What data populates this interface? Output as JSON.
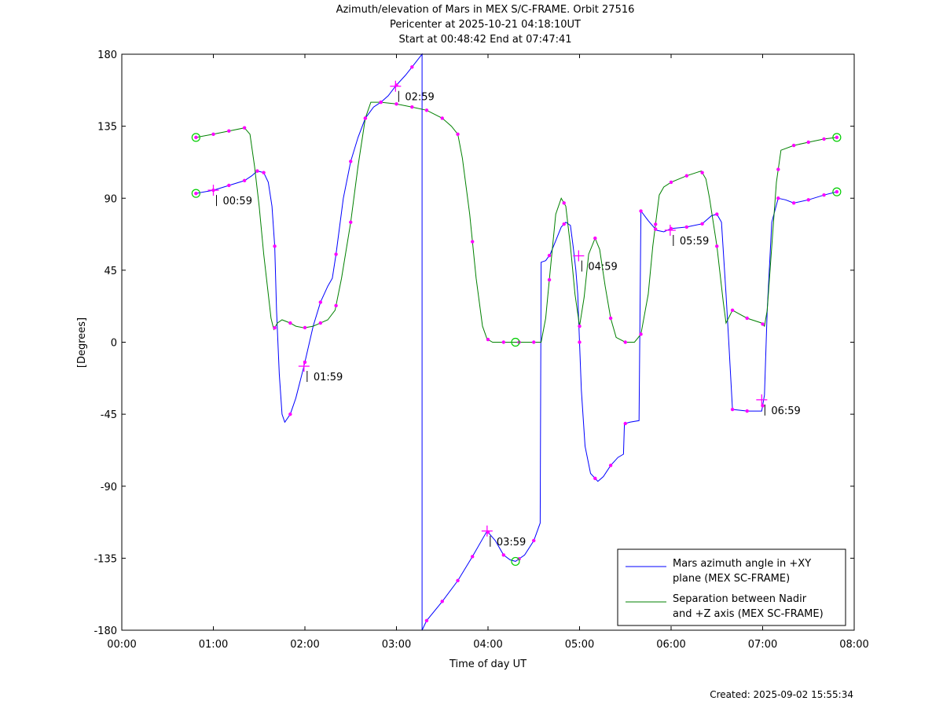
{
  "header": {
    "title": "Azimuth/elevation of Mars in MEX S/C-FRAME.  Orbit 27516",
    "subtitle1": "Pericenter at 2025-10-21 04:18:10UT",
    "subtitle2": "Start at 00:48:42 End at 07:47:41"
  },
  "footer": {
    "created": "Created: 2025-09-02 15:55:34"
  },
  "chart_data": {
    "type": "line",
    "title": "Azimuth/elevation of Mars in MEX S/C-FRAME.  Orbit 27516",
    "xlabel": "Time of day UT",
    "ylabel": "[Degrees]",
    "xlim": [
      0,
      8
    ],
    "ylim": [
      -180,
      180
    ],
    "x_unit": "hours UT",
    "x_ticks": [
      0,
      1,
      2,
      3,
      4,
      5,
      6,
      7,
      8
    ],
    "x_tick_labels": [
      "00:00",
      "01:00",
      "02:00",
      "03:00",
      "04:00",
      "05:00",
      "06:00",
      "07:00",
      "08:00"
    ],
    "y_ticks": [
      180,
      135,
      90,
      45,
      0,
      -45,
      -90,
      -135,
      -180
    ],
    "y_tick_labels": [
      "180",
      "135",
      "90",
      "45",
      "0",
      "-45",
      "-90",
      "-135",
      "-180"
    ],
    "grid": false,
    "legend_position": "bottom-right",
    "colors": {
      "azimuth": "#0000ff",
      "separation": "#008000",
      "markers": "#ff00ff",
      "endpoints": "#00cc00"
    },
    "series": [
      {
        "name": "Mars azimuth angle in +XY plane (MEX SC-FRAME)",
        "legend_lines": [
          "Mars azimuth angle in +XY",
          "plane (MEX SC-FRAME)"
        ],
        "color": "#0000ff",
        "points": [
          [
            0.81,
            93
          ],
          [
            1.0,
            95
          ],
          [
            1.17,
            98
          ],
          [
            1.34,
            101
          ],
          [
            1.42,
            104
          ],
          [
            1.48,
            107
          ],
          [
            1.55,
            106
          ],
          [
            1.6,
            100
          ],
          [
            1.64,
            85
          ],
          [
            1.67,
            60
          ],
          [
            1.69,
            20
          ],
          [
            1.72,
            -20
          ],
          [
            1.75,
            -45
          ],
          [
            1.78,
            -50
          ],
          [
            1.84,
            -45
          ],
          [
            1.9,
            -35
          ],
          [
            1.99,
            -15
          ],
          [
            2.09,
            10
          ],
          [
            2.17,
            25
          ],
          [
            2.25,
            35
          ],
          [
            2.3,
            40
          ],
          [
            2.34,
            55
          ],
          [
            2.42,
            90
          ],
          [
            2.5,
            113
          ],
          [
            2.58,
            128
          ],
          [
            2.66,
            140
          ],
          [
            2.75,
            147
          ],
          [
            2.83,
            150
          ],
          [
            2.91,
            154
          ],
          [
            2.99,
            160
          ],
          [
            3.1,
            167
          ],
          [
            3.17,
            172
          ],
          [
            3.28,
            180
          ],
          [
            3.28,
            -180
          ],
          [
            3.33,
            -174
          ],
          [
            3.5,
            -162
          ],
          [
            3.67,
            -149
          ],
          [
            3.83,
            -134
          ],
          [
            3.99,
            -118
          ],
          [
            4.08,
            -124
          ],
          [
            4.17,
            -133
          ],
          [
            4.24,
            -136
          ],
          [
            4.3,
            -137
          ],
          [
            4.4,
            -133
          ],
          [
            4.5,
            -124
          ],
          [
            4.57,
            -113
          ],
          [
            4.58,
            50
          ],
          [
            4.63,
            51
          ],
          [
            4.68,
            55
          ],
          [
            4.73,
            62
          ],
          [
            4.8,
            72
          ],
          [
            4.85,
            75
          ],
          [
            4.9,
            73
          ],
          [
            4.93,
            60
          ],
          [
            4.96,
            45
          ],
          [
            4.98,
            30
          ],
          [
            4.99,
            15
          ],
          [
            5.02,
            -30
          ],
          [
            5.06,
            -65
          ],
          [
            5.12,
            -82
          ],
          [
            5.2,
            -87
          ],
          [
            5.26,
            -84
          ],
          [
            5.34,
            -77
          ],
          [
            5.42,
            -72
          ],
          [
            5.48,
            -70
          ],
          [
            5.49,
            -51
          ],
          [
            5.55,
            -50
          ],
          [
            5.65,
            -49
          ],
          [
            5.67,
            82
          ],
          [
            5.75,
            76
          ],
          [
            5.84,
            70
          ],
          [
            5.92,
            69
          ],
          [
            6.0,
            71
          ],
          [
            6.17,
            72
          ],
          [
            6.34,
            74
          ],
          [
            6.44,
            79
          ],
          [
            6.5,
            80
          ],
          [
            6.55,
            75
          ],
          [
            6.6,
            30
          ],
          [
            6.63,
            0
          ],
          [
            6.67,
            -42
          ],
          [
            6.83,
            -43
          ],
          [
            6.99,
            -43
          ],
          [
            7.02,
            -33
          ],
          [
            7.05,
            20
          ],
          [
            7.1,
            75
          ],
          [
            7.17,
            90
          ],
          [
            7.25,
            89
          ],
          [
            7.34,
            87
          ],
          [
            7.5,
            89
          ],
          [
            7.67,
            92
          ],
          [
            7.81,
            94
          ]
        ]
      },
      {
        "name": "Separation between Nadir and +Z axis (MEX SC-FRAME)",
        "legend_lines": [
          "Separation between Nadir",
          "and +Z axis (MEX SC-FRAME)"
        ],
        "color": "#008000",
        "points": [
          [
            0.81,
            128
          ],
          [
            1.0,
            130
          ],
          [
            1.17,
            132
          ],
          [
            1.34,
            134
          ],
          [
            1.4,
            130
          ],
          [
            1.45,
            110
          ],
          [
            1.5,
            85
          ],
          [
            1.55,
            55
          ],
          [
            1.6,
            30
          ],
          [
            1.63,
            15
          ],
          [
            1.66,
            8
          ],
          [
            1.7,
            12
          ],
          [
            1.75,
            14
          ],
          [
            1.84,
            12
          ],
          [
            1.9,
            10
          ],
          [
            1.99,
            9
          ],
          [
            2.09,
            10
          ],
          [
            2.17,
            12
          ],
          [
            2.25,
            14
          ],
          [
            2.33,
            20
          ],
          [
            2.4,
            40
          ],
          [
            2.5,
            75
          ],
          [
            2.58,
            110
          ],
          [
            2.66,
            140
          ],
          [
            2.72,
            150
          ],
          [
            2.83,
            150
          ],
          [
            2.99,
            149
          ],
          [
            3.17,
            147
          ],
          [
            3.33,
            145
          ],
          [
            3.5,
            140
          ],
          [
            3.6,
            135
          ],
          [
            3.67,
            130
          ],
          [
            3.72,
            115
          ],
          [
            3.8,
            80
          ],
          [
            3.87,
            40
          ],
          [
            3.94,
            10
          ],
          [
            3.99,
            2
          ],
          [
            4.05,
            0
          ],
          [
            4.17,
            0
          ],
          [
            4.3,
            0
          ],
          [
            4.5,
            0
          ],
          [
            4.58,
            0
          ],
          [
            4.63,
            15
          ],
          [
            4.68,
            45
          ],
          [
            4.74,
            80
          ],
          [
            4.8,
            90
          ],
          [
            4.85,
            85
          ],
          [
            4.9,
            60
          ],
          [
            4.95,
            30
          ],
          [
            5.0,
            10
          ],
          [
            5.05,
            28
          ],
          [
            5.1,
            55
          ],
          [
            5.17,
            65
          ],
          [
            5.22,
            58
          ],
          [
            5.28,
            35
          ],
          [
            5.34,
            15
          ],
          [
            5.4,
            3
          ],
          [
            5.5,
            0
          ],
          [
            5.6,
            0
          ],
          [
            5.67,
            5
          ],
          [
            5.75,
            30
          ],
          [
            5.8,
            60
          ],
          [
            5.87,
            92
          ],
          [
            5.92,
            97
          ],
          [
            6.0,
            100
          ],
          [
            6.17,
            104
          ],
          [
            6.33,
            107
          ],
          [
            6.38,
            102
          ],
          [
            6.42,
            90
          ],
          [
            6.5,
            60
          ],
          [
            6.57,
            25
          ],
          [
            6.6,
            12
          ],
          [
            6.67,
            20
          ],
          [
            6.83,
            15
          ],
          [
            6.99,
            12
          ],
          [
            7.02,
            10
          ],
          [
            7.05,
            20
          ],
          [
            7.1,
            60
          ],
          [
            7.15,
            100
          ],
          [
            7.2,
            120
          ],
          [
            7.34,
            123
          ],
          [
            7.5,
            125
          ],
          [
            7.67,
            127
          ],
          [
            7.81,
            128
          ]
        ]
      }
    ],
    "markers": {
      "azimuth": [
        0.81,
        1.0,
        1.17,
        1.34,
        1.48,
        1.55,
        1.67,
        1.84,
        2.0,
        2.17,
        2.34,
        2.5,
        2.66,
        2.83,
        3.0,
        3.17,
        3.33,
        3.5,
        3.67,
        3.83,
        4.0,
        4.17,
        4.34,
        4.5,
        4.67,
        4.83,
        5.0,
        5.17,
        5.34,
        5.5,
        5.67,
        5.83,
        6.0,
        6.17,
        6.34,
        6.5,
        6.67,
        6.83,
        7.0,
        7.17,
        7.34,
        7.5,
        7.67,
        7.81
      ],
      "separation": [
        0.81,
        1.0,
        1.17,
        1.34,
        1.67,
        1.84,
        2.0,
        2.17,
        2.34,
        2.5,
        2.66,
        2.83,
        3.0,
        3.17,
        3.33,
        3.5,
        3.67,
        3.83,
        4.0,
        4.17,
        4.34,
        4.5,
        4.67,
        4.83,
        5.0,
        5.17,
        5.34,
        5.5,
        5.67,
        5.83,
        6.0,
        6.17,
        6.34,
        6.5,
        6.67,
        6.83,
        7.0,
        7.17,
        7.34,
        7.5,
        7.67,
        7.81
      ]
    },
    "annotations": [
      {
        "label": "00:59",
        "x": 1.0,
        "y": 95,
        "side": "below"
      },
      {
        "label": "01:59",
        "x": 1.99,
        "y": -15,
        "side": "below"
      },
      {
        "label": "02:59",
        "x": 2.99,
        "y": 160,
        "side": "below"
      },
      {
        "label": "03:59",
        "x": 3.99,
        "y": -118,
        "side": "below"
      },
      {
        "label": "04:59",
        "x": 4.99,
        "y": 54,
        "side": "below"
      },
      {
        "label": "05:59",
        "x": 5.99,
        "y": 70,
        "side": "below"
      },
      {
        "label": "06:59",
        "x": 6.99,
        "y": -36,
        "side": "below"
      }
    ]
  }
}
